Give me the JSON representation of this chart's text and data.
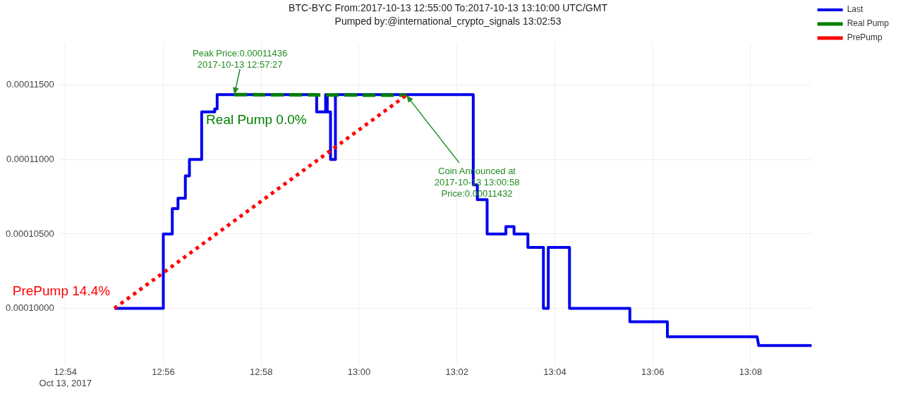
{
  "chart_data": {
    "type": "line",
    "title": "BTC-BYC From:2017-10-13 12:55:00 To:2017-10-13 13:10:00 UTC/GMT",
    "subtitle": "Pumped by:@international_crypto_signals 13:02:53",
    "xlim": [
      "2017-10-13T12:53:53",
      "2017-10-13T13:09:15"
    ],
    "xticks": [
      {
        "value": "2017-10-13T12:54",
        "label": "12:54\nOct 13, 2017"
      },
      {
        "value": "2017-10-13T12:56",
        "label": "12:56"
      },
      {
        "value": "2017-10-13T12:58",
        "label": "12:58"
      },
      {
        "value": "2017-10-13T13:00",
        "label": "13:00"
      },
      {
        "value": "2017-10-13T13:02",
        "label": "13:02"
      },
      {
        "value": "2017-10-13T13:04",
        "label": "13:04"
      },
      {
        "value": "2017-10-13T13:06",
        "label": "13:06"
      },
      {
        "value": "2017-10-13T13:08",
        "label": "13:08"
      }
    ],
    "ylim": [
      9.62e-05,
      0.0001178
    ],
    "yticks": [
      {
        "value": 0.0001,
        "label": "0.00010000"
      },
      {
        "value": 0.000105,
        "label": "0.00010500"
      },
      {
        "value": 0.00011,
        "label": "0.00011000"
      },
      {
        "value": 0.000115,
        "label": "0.00011500"
      }
    ],
    "grid": true,
    "legend": "top right",
    "marker": "none",
    "series": [
      {
        "name": "Last",
        "color": "#0000ee",
        "line_style": "solid",
        "x": [
          "2017-10-13T12:55:00",
          "2017-10-13T12:56:00",
          "2017-10-13T12:56:00",
          "2017-10-13T12:56:11",
          "2017-10-13T12:56:11",
          "2017-10-13T12:56:18",
          "2017-10-13T12:56:18",
          "2017-10-13T12:56:27",
          "2017-10-13T12:56:27",
          "2017-10-13T12:56:32",
          "2017-10-13T12:56:32",
          "2017-10-13T12:56:47",
          "2017-10-13T12:56:47",
          "2017-10-13T12:57:03",
          "2017-10-13T12:57:03",
          "2017-10-13T12:57:06",
          "2017-10-13T12:57:06",
          "2017-10-13T12:59:08",
          "2017-10-13T12:59:08",
          "2017-10-13T12:59:19",
          "2017-10-13T12:59:19",
          "2017-10-13T12:59:21",
          "2017-10-13T12:59:21",
          "2017-10-13T12:59:25",
          "2017-10-13T12:59:25",
          "2017-10-13T12:59:31",
          "2017-10-13T12:59:31",
          "2017-10-13T13:02:20",
          "2017-10-13T13:02:20",
          "2017-10-13T13:02:25",
          "2017-10-13T13:02:25",
          "2017-10-13T13:02:37",
          "2017-10-13T13:02:37",
          "2017-10-13T13:03:00",
          "2017-10-13T13:03:00",
          "2017-10-13T13:03:10",
          "2017-10-13T13:03:10",
          "2017-10-13T13:03:27",
          "2017-10-13T13:03:27",
          "2017-10-13T13:03:46",
          "2017-10-13T13:03:46",
          "2017-10-13T13:03:52",
          "2017-10-13T13:03:52",
          "2017-10-13T13:04:18",
          "2017-10-13T13:04:18",
          "2017-10-13T13:05:32",
          "2017-10-13T13:05:32",
          "2017-10-13T13:06:18",
          "2017-10-13T13:06:18",
          "2017-10-13T13:08:08",
          "2017-10-13T13:08:10",
          "2017-10-13T13:09:15"
        ],
        "values": [
          0.0001,
          0.0001,
          0.000105,
          0.000105,
          0.0001067,
          0.0001067,
          0.0001074,
          0.0001074,
          0.0001089,
          0.0001089,
          0.00011,
          0.00011,
          0.0001132,
          0.0001132,
          0.0001134,
          0.0001134,
          0.00011436,
          0.00011436,
          0.0001132,
          0.0001132,
          0.00011436,
          0.00011436,
          0.0001132,
          0.0001132,
          0.00011,
          0.00011,
          0.00011436,
          0.00011436,
          0.0001083,
          0.0001083,
          0.0001073,
          0.0001073,
          0.000105,
          0.000105,
          0.0001055,
          0.0001055,
          0.000105,
          0.000105,
          0.0001041,
          0.0001041,
          0.0001,
          0.0001,
          0.0001041,
          0.0001041,
          0.0001,
          0.0001,
          9.91e-05,
          9.91e-05,
          9.81e-05,
          9.81e-05,
          9.75e-05,
          9.75e-05
        ]
      },
      {
        "name": "Real Pump",
        "color": "#008000",
        "line_style": "dashed",
        "x": [
          "2017-10-13T12:57:27",
          "2017-10-13T13:00:58"
        ],
        "values": [
          0.00011436,
          0.00011432
        ],
        "value_labels": [
          "Real Pump 0.0%",
          null
        ]
      },
      {
        "name": "PrePump",
        "color": "#ff0000",
        "line_style": "dotted",
        "x": [
          "2017-10-13T12:55:00",
          "2017-10-13T13:00:58"
        ],
        "values": [
          0.0001,
          0.00011432
        ],
        "value_labels": [
          "PrePump 14.4%",
          null
        ]
      }
    ],
    "annotations": [
      {
        "text": "Peak Price:0.00011436\n2017-10-13 12:57:27",
        "x": "2017-10-13T12:57:27",
        "y": 0.00011436
      },
      {
        "text": "Coin Announced at\n2017-10-13 13:00:58\nPrice:0.00011432",
        "x": "2017-10-13T13:00:58",
        "y": 0.00011432
      }
    ]
  }
}
